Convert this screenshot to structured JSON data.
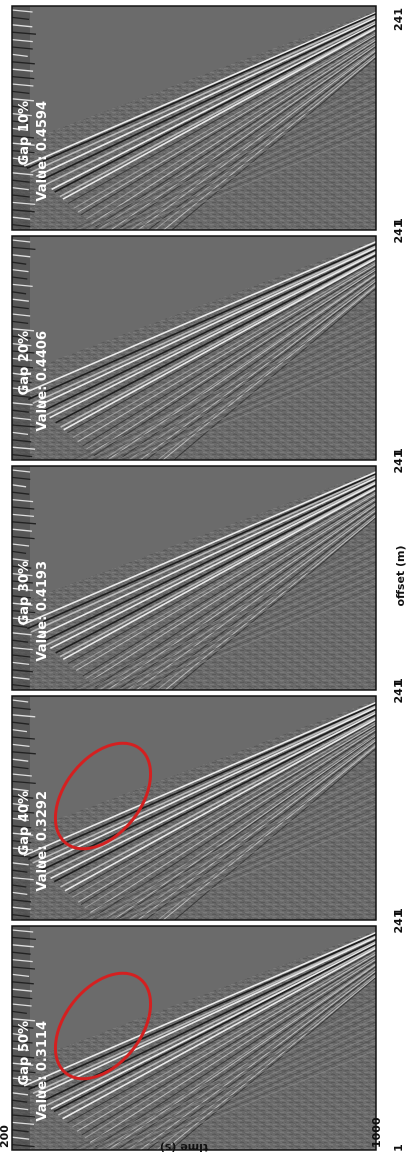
{
  "figure": {
    "y_axis": {
      "label": "time (s)",
      "ticks": [
        "200",
        "1000"
      ]
    },
    "x_axis": {
      "label": "offset (m)",
      "tick_first": "1",
      "tick_last": "241"
    },
    "panels": [
      {
        "gap": "Gap 10%",
        "value": "Value: 0.4594",
        "highlight": false
      },
      {
        "gap": "Gap 20%",
        "value": "Value: 0.4406",
        "highlight": false
      },
      {
        "gap": "Gap 30%",
        "value": "Value: 0.4193",
        "highlight": false
      },
      {
        "gap": "Gap 40%",
        "value": "Value: 0.3292",
        "highlight": true
      },
      {
        "gap": "Gap 50%",
        "value": "Value: 0.3114",
        "highlight": true
      }
    ],
    "colors": {
      "panel_background": "#6b6b6b",
      "highlight_ellipse": "#d42020",
      "frame": "#111111"
    }
  }
}
